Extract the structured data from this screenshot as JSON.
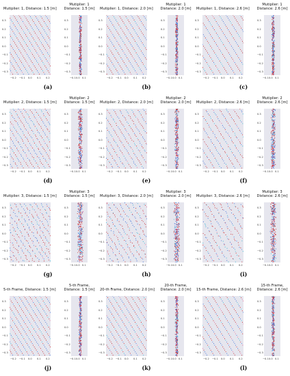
{
  "figure": {
    "rows": [
      {
        "panels": [
          {
            "label": "(a)",
            "wide_title": "Mutiplier: 1, Distance: 1.5 [m]",
            "narrow_title": "Mutiplier: 1\nDistance: 1.5 [m]",
            "spacing": 1.5,
            "jitter": 0.0
          },
          {
            "label": "(b)",
            "wide_title": "Mutiplier: 1, Distance: 2.0 [m]",
            "narrow_title": "Mutiplier: 1\nDistance: 2.0 [m]",
            "spacing": 2.0,
            "jitter": 0.0
          },
          {
            "label": "(c)",
            "wide_title": "Mutiplier: 1, Distance: 2.6 [m]",
            "narrow_title": "Mutiplier: 1\nDistance: 2.6 [m]",
            "spacing": 2.6,
            "jitter": 0.0
          }
        ]
      },
      {
        "panels": [
          {
            "label": "(d)",
            "wide_title": "Mutiplier: 2, Distance: 1.5 [m]",
            "narrow_title": "Mutiplier: 2\nDistance: 1.5 [m]",
            "spacing": 1.5,
            "jitter": 0.5
          },
          {
            "label": "(e)",
            "wide_title": "Mutiplier: 2, Distance: 2.0 [m]",
            "narrow_title": "Mutiplier: 2\nDistance: 2.0 [m]",
            "spacing": 2.0,
            "jitter": 0.5
          },
          {
            "label": "(f)",
            "wide_title": "Mutiplier: 2, Distance: 2.6 [m]",
            "narrow_title": "Mutiplier: 2\nDistance: 2.6 [m]",
            "spacing": 2.6,
            "jitter": 0.5
          }
        ]
      },
      {
        "panels": [
          {
            "label": "(g)",
            "wide_title": "Mutiplier: 3, Distance: 1.5 [m]",
            "narrow_title": "Mutiplier: 3\nDistance: 1.5 [m]",
            "spacing": 1.5,
            "jitter": 1.0
          },
          {
            "label": "(h)",
            "wide_title": "Mutiplier: 3, Distance: 2.0 [m]",
            "narrow_title": "Mutiplier: 3\nDistance: 2.0 [m]",
            "spacing": 2.0,
            "jitter": 1.0
          },
          {
            "label": "(i)",
            "wide_title": "Mutiplier: 3, Distance: 2.6 [m]",
            "narrow_title": "Mutiplier: 3\nDistance: 2.6 [m]",
            "spacing": 2.6,
            "jitter": 1.0
          }
        ]
      },
      {
        "panels": [
          {
            "label": "(j)",
            "wide_title": "5-th Frame, Distance: 1.5 [m]",
            "narrow_title": "5-th Frame,\nDistance: 1.5 [m]",
            "spacing": 1.5,
            "jitter": 0.1
          },
          {
            "label": "(k)",
            "wide_title": "20-th Frame, Distance: 2.0 [m]",
            "narrow_title": "20-th Frame,\nDistance: 2.0 [m]",
            "spacing": 2.0,
            "jitter": 0.1
          },
          {
            "label": "(l)",
            "wide_title": "15-th Frame, Distance: 2.6 [m]",
            "narrow_title": "15-th Frame,\nDistance: 2.6 [m]",
            "spacing": 2.6,
            "jitter": 0.1
          }
        ]
      }
    ],
    "wide_y_ticks": [
      "0.3",
      "0.2",
      "0.1",
      "0.0",
      "−0.1",
      "−0.2",
      "−0.3"
    ],
    "wide_x_ticks": [
      "−0.2",
      "−0.1",
      "0.0",
      "0.1",
      "0.2"
    ],
    "narrow_y_ticks": [
      "0.3",
      "0.2",
      "0.1",
      "0.0",
      "−0.1",
      "−0.2",
      "−0.3"
    ],
    "narrow_x_ticks": [
      "−0.1",
      "0.0",
      "0.1"
    ]
  },
  "colors": {
    "background": "#e6e6ee",
    "red": "#c8282d",
    "blue": "#3b6fd8",
    "cyan": "#35b6d6",
    "pink": "#e86a9a"
  }
}
